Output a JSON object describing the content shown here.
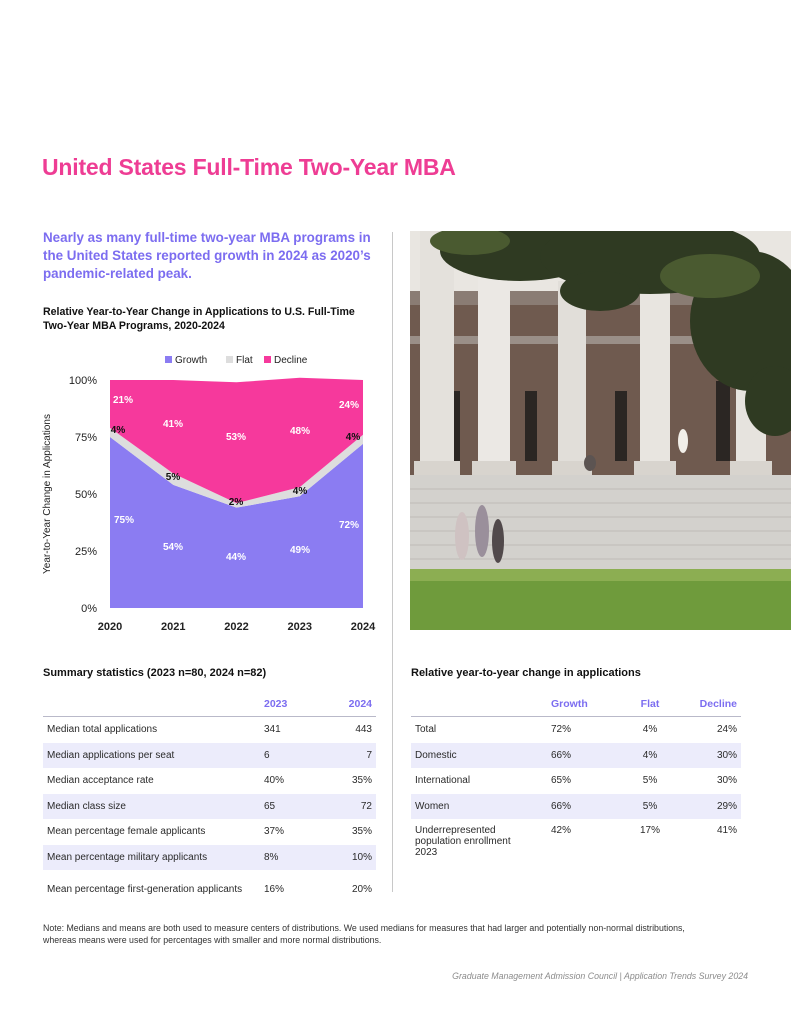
{
  "page": {
    "title": "United States Full-Time Two-Year MBA",
    "lead": "Nearly as many full-time two-year MBA programs in the United States reported growth in 2024 as 2020’s pandemic-related peak.",
    "note": "Note: Medians and means are both used to measure centers of distributions. We used medians for measures that had larger and potentially non-normal distributions, whereas means were used for percentages with smaller and more normal distributions.",
    "footer": "Graduate Management Admission Council | Application Trends Survey 2024"
  },
  "chart_data": {
    "type": "area",
    "stacked": true,
    "title": "Relative Year-to-Year Change in Applications to U.S. Full-Time Two-Year MBA Programs, 2020-2024",
    "ylabel": "Year-to-Year Change in Applications",
    "xlabel": "",
    "categories": [
      "2020",
      "2021",
      "2022",
      "2023",
      "2024"
    ],
    "y_ticks": [
      "0%",
      "25%",
      "50%",
      "75%",
      "100%"
    ],
    "ylim": [
      0,
      100
    ],
    "legend_position": "top",
    "series": [
      {
        "name": "Growth",
        "color": "#8b7cf2",
        "values": [
          75,
          54,
          44,
          49,
          72
        ],
        "labels": [
          "75%",
          "54%",
          "44%",
          "49%",
          "72%"
        ]
      },
      {
        "name": "Flat",
        "color": "#dddddd",
        "values": [
          4,
          5,
          2,
          4,
          4
        ],
        "labels": [
          "4%",
          "5%",
          "2%",
          "4%",
          "4%"
        ]
      },
      {
        "name": "Decline",
        "color": "#f6399c",
        "values": [
          21,
          41,
          53,
          48,
          24
        ],
        "labels": [
          "21%",
          "41%",
          "53%",
          "48%",
          "24%"
        ]
      }
    ]
  },
  "summary": {
    "title": "Summary statistics (2023 n=80, 2024 n=82)",
    "headers": [
      "",
      "2023",
      "2024"
    ],
    "rows": [
      {
        "label": "Median total applications",
        "y2023": "341",
        "y2024": "443"
      },
      {
        "label": "Median applications per seat",
        "y2023": "6",
        "y2024": "7"
      },
      {
        "label": "Median acceptance rate",
        "y2023": "40%",
        "y2024": "35%"
      },
      {
        "label": "Median class size",
        "y2023": "65",
        "y2024": "72"
      },
      {
        "label": "Mean percentage female applicants",
        "y2023": "37%",
        "y2024": "35%"
      },
      {
        "label": "Mean percentage military applicants",
        "y2023": "8%",
        "y2024": "10%"
      },
      {
        "label": "Mean percentage first-generation applicants",
        "y2023": "16%",
        "y2024": "20%"
      }
    ]
  },
  "relative": {
    "title": "Relative year-to-year change in applications",
    "headers": [
      "",
      "Growth",
      "Flat",
      "Decline"
    ],
    "rows": [
      {
        "label": "Total",
        "growth": "72%",
        "flat": "4%",
        "decline": "24%"
      },
      {
        "label": "Domestic",
        "growth": "66%",
        "flat": "4%",
        "decline": "30%"
      },
      {
        "label": "International",
        "growth": "65%",
        "flat": "5%",
        "decline": "30%"
      },
      {
        "label": "Women",
        "growth": "66%",
        "flat": "5%",
        "decline": "29%"
      },
      {
        "label": "Underrepresented population enrollment 2023",
        "growth": "42%",
        "flat": "17%",
        "decline": "41%"
      }
    ]
  }
}
